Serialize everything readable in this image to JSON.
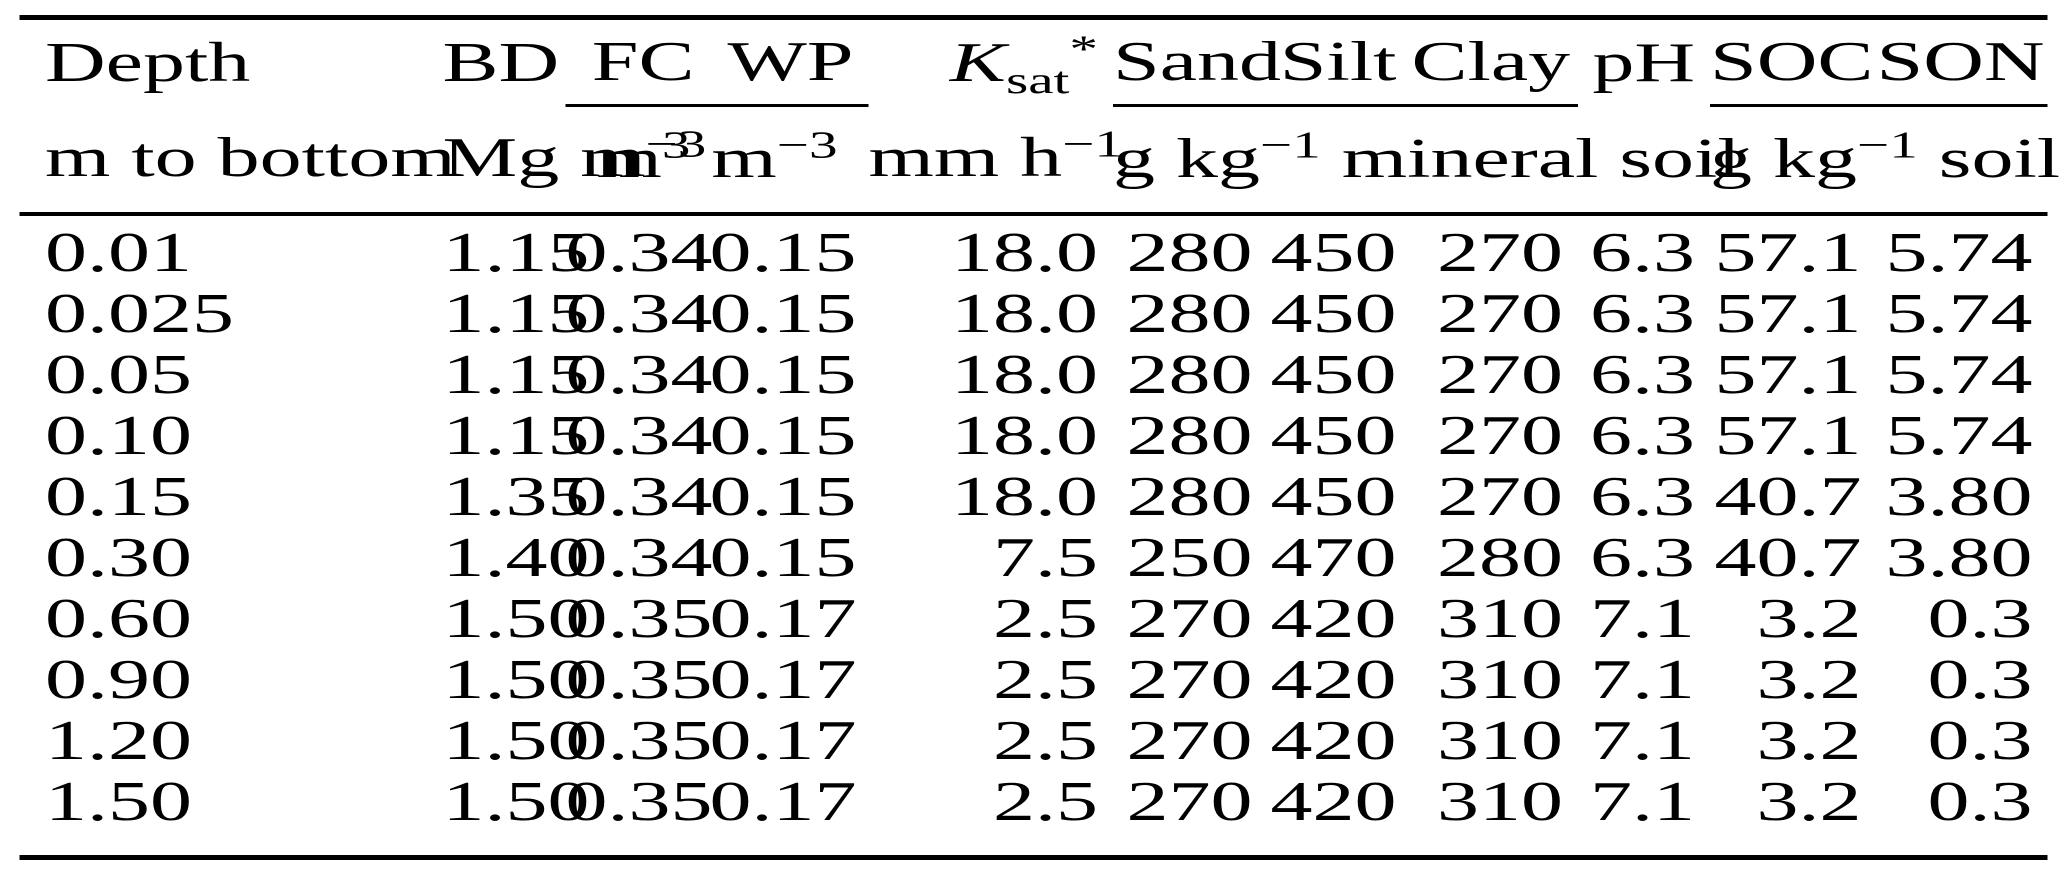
{
  "page": {
    "background": "#ffffff",
    "text_color": "#000000",
    "rule_color": "#000000"
  },
  "table": {
    "header": {
      "depth": {
        "label": "Depth",
        "unit": "m to bottom"
      },
      "bd": {
        "label": "BD",
        "unit_base": "Mg m",
        "unit_sup": "−3"
      },
      "fc": {
        "label": "FC"
      },
      "wp": {
        "label": "WP"
      },
      "fcwp_unit": {
        "base1": "m",
        "sup1": "3",
        "base2": " m",
        "sup2": "−3"
      },
      "ksat": {
        "label_base": "K",
        "label_sub": "sat",
        "label_sup": "*",
        "unit_base": "mm h",
        "unit_sup": "−1"
      },
      "sand": {
        "label": "Sand"
      },
      "silt": {
        "label": "Silt"
      },
      "clay": {
        "label": "Clay"
      },
      "texture_unit": {
        "base": "g kg",
        "sup": "−1",
        "rest": " mineral soil"
      },
      "ph": {
        "label": "pH",
        "unit": ""
      },
      "soc": {
        "label": "SOC"
      },
      "son": {
        "label": "SON"
      },
      "socson_unit": {
        "base": "g kg",
        "sup": "−1",
        "rest": " soil"
      }
    },
    "rows": [
      [
        "0.01",
        "1.15",
        "0.34",
        "0.15",
        "18.0",
        "280",
        "450",
        "270",
        "6.3",
        "57.1",
        "5.74"
      ],
      [
        "0.025",
        "1.15",
        "0.34",
        "0.15",
        "18.0",
        "280",
        "450",
        "270",
        "6.3",
        "57.1",
        "5.74"
      ],
      [
        "0.05",
        "1.15",
        "0.34",
        "0.15",
        "18.0",
        "280",
        "450",
        "270",
        "6.3",
        "57.1",
        "5.74"
      ],
      [
        "0.10",
        "1.15",
        "0.34",
        "0.15",
        "18.0",
        "280",
        "450",
        "270",
        "6.3",
        "57.1",
        "5.74"
      ],
      [
        "0.15",
        "1.35",
        "0.34",
        "0.15",
        "18.0",
        "280",
        "450",
        "270",
        "6.3",
        "40.7",
        "3.80"
      ],
      [
        "0.30",
        "1.40",
        "0.34",
        "0.15",
        "7.5",
        "250",
        "470",
        "280",
        "6.3",
        "40.7",
        "3.80"
      ],
      [
        "0.60",
        "1.50",
        "0.35",
        "0.17",
        "2.5",
        "270",
        "420",
        "310",
        "7.1",
        "3.2",
        "0.3"
      ],
      [
        "0.90",
        "1.50",
        "0.35",
        "0.17",
        "2.5",
        "270",
        "420",
        "310",
        "7.1",
        "3.2",
        "0.3"
      ],
      [
        "1.20",
        "1.50",
        "0.35",
        "0.17",
        "2.5",
        "270",
        "420",
        "310",
        "7.1",
        "3.2",
        "0.3"
      ],
      [
        "1.50",
        "1.50",
        "0.35",
        "0.17",
        "2.5",
        "270",
        "420",
        "310",
        "7.1",
        "3.2",
        "0.3"
      ]
    ]
  }
}
